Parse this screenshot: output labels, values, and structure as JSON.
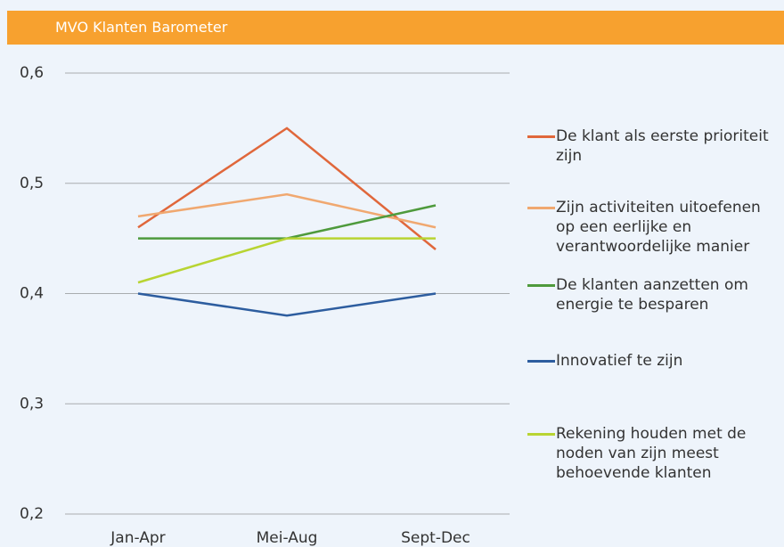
{
  "chart_data": {
    "type": "line",
    "title": "MVO Klanten Barometer",
    "categories": [
      "Jan-Apr",
      "Mei-Aug",
      "Sept-Dec"
    ],
    "series": [
      {
        "name": "De klant als eerste prioriteit zijn",
        "color": "#e0673b",
        "values": [
          0.46,
          0.55,
          0.44
        ]
      },
      {
        "name": "Zijn activiteiten uitoefenen op een eerlijke en verantwoordelijke manier",
        "color": "#f0a870",
        "values": [
          0.47,
          0.49,
          0.46
        ]
      },
      {
        "name": "De klanten aanzetten om energie te besparen",
        "color": "#4e9a3c",
        "values": [
          0.45,
          0.45,
          0.48
        ]
      },
      {
        "name": "Innovatief te zijn",
        "color": "#2d5d9f",
        "values": [
          0.4,
          0.38,
          0.4
        ]
      },
      {
        "name": "Rekening houden met de noden van zijn meest behoevende klanten",
        "color": "#b8d432",
        "values": [
          0.41,
          0.45,
          0.45
        ]
      }
    ],
    "ylim": [
      0.2,
      0.6
    ],
    "yticks": [
      {
        "value": 0.2,
        "label": "0,2"
      },
      {
        "value": 0.3,
        "label": "0,3"
      },
      {
        "value": 0.4,
        "label": "0,4"
      },
      {
        "value": 0.5,
        "label": "0,5"
      },
      {
        "value": 0.6,
        "label": "0,6"
      }
    ],
    "grid": true
  }
}
